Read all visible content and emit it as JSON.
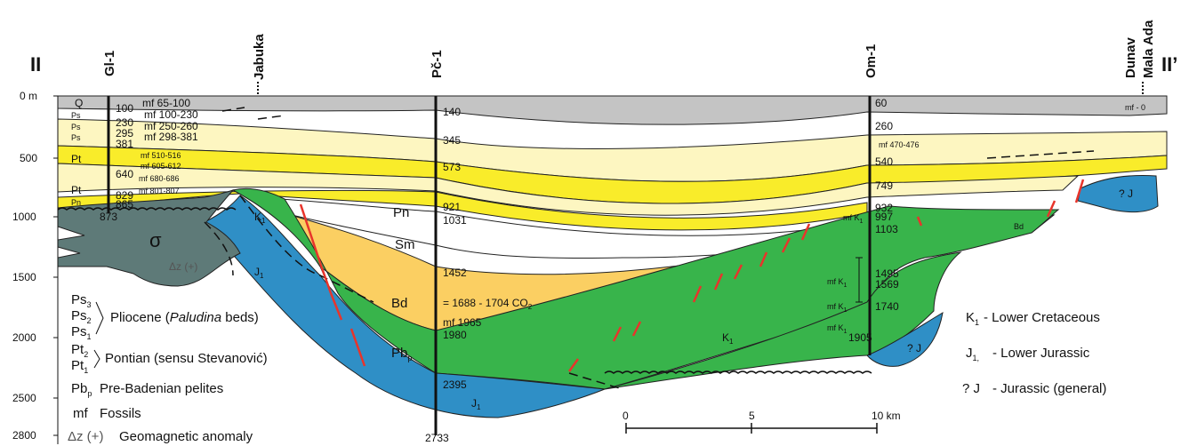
{
  "section": {
    "left_label": "II",
    "right_label": "II’"
  },
  "wells": {
    "gl1": "Gl-1",
    "jabuka": "Jabuka",
    "pc1": "Pč-1",
    "om1": "Om-1",
    "dunav": "Dunav",
    "mala_ada": "Mala Ada"
  },
  "y_axis": {
    "ticks": [
      "0 m",
      "500",
      "1000",
      "1500",
      "2000",
      "2500",
      "2800"
    ]
  },
  "gl1_depths": [
    "100",
    "230",
    "295",
    "381",
    "640",
    "829",
    "865",
    "873"
  ],
  "gl1_strata": {
    "q": "Q",
    "ps3": "Ps",
    "ps2": "Ps",
    "ps1": "Ps",
    "pt2": "Pt",
    "pt1": "Pt",
    "pn": "Pn"
  },
  "gl1_fossils": [
    "mf 65-100",
    "mf 100-230",
    "mf 250-260",
    "mf 298-381",
    "mf 510-516",
    "mf 605-612",
    "mf 680-686",
    "mf 801-807"
  ],
  "pc1_depths": [
    "140",
    "345",
    "573",
    "921",
    "1031",
    "1452",
    "1980",
    "2395",
    "2733"
  ],
  "pc1_notes": {
    "co2": "= 1688 - 1704 CO",
    "mf": "mf 1965"
  },
  "om1_depths": [
    "60",
    "260",
    "540",
    "749",
    "932",
    "997",
    "1103",
    "1495",
    "1569",
    "1740",
    "1905"
  ],
  "om1_fossils": [
    "mf 470-476",
    "mf K",
    "mf K",
    "mf K",
    "mf K"
  ],
  "dunav_fossil": "mf - 0",
  "units": {
    "pn": "Pn",
    "sm": "Sm",
    "bd": "Bd",
    "bd_small": "Bd",
    "pb": "Pb",
    "k1": "K",
    "j1": "J",
    "qj": "? J",
    "sigma": "σ",
    "dz": "Δz (+)"
  },
  "legend_left": {
    "ps3": "Ps",
    "ps2": "Ps",
    "ps1": "Ps",
    "pliocene_a": "Pliocene (",
    "pliocene_b": "Paludina",
    "pliocene_c": " beds)",
    "pt2": "Pt",
    "pt1": "Pt",
    "pontian": "Pontian (sensu Stevanović)",
    "pbp": "Pb",
    "pbp_desc": "Pre-Badenian pelites",
    "mf": "mf",
    "mf_desc": "Fossils",
    "dz": "Δz (+)",
    "dz_desc": "Geomagnetic anomaly"
  },
  "legend_right": {
    "k1": "K",
    "k1_desc": "- Lower Cretaceous",
    "j1": "J",
    "j1_desc": "- Lower Jurassic",
    "qj": "? J",
    "qj_desc": "- Jurassic (general)"
  },
  "scale_bar": {
    "labels": [
      "0",
      "5",
      "10 km"
    ]
  },
  "colors": {
    "gray_top": "#c4c4c4",
    "pale_yellow": "#fdf6c1",
    "yellow": "#f9ec2a",
    "orange": "#fbcf62",
    "green": "#38b44b",
    "blue": "#2f8fc6",
    "serpentinite": "#5e7a78",
    "fault": "#e8342b"
  }
}
